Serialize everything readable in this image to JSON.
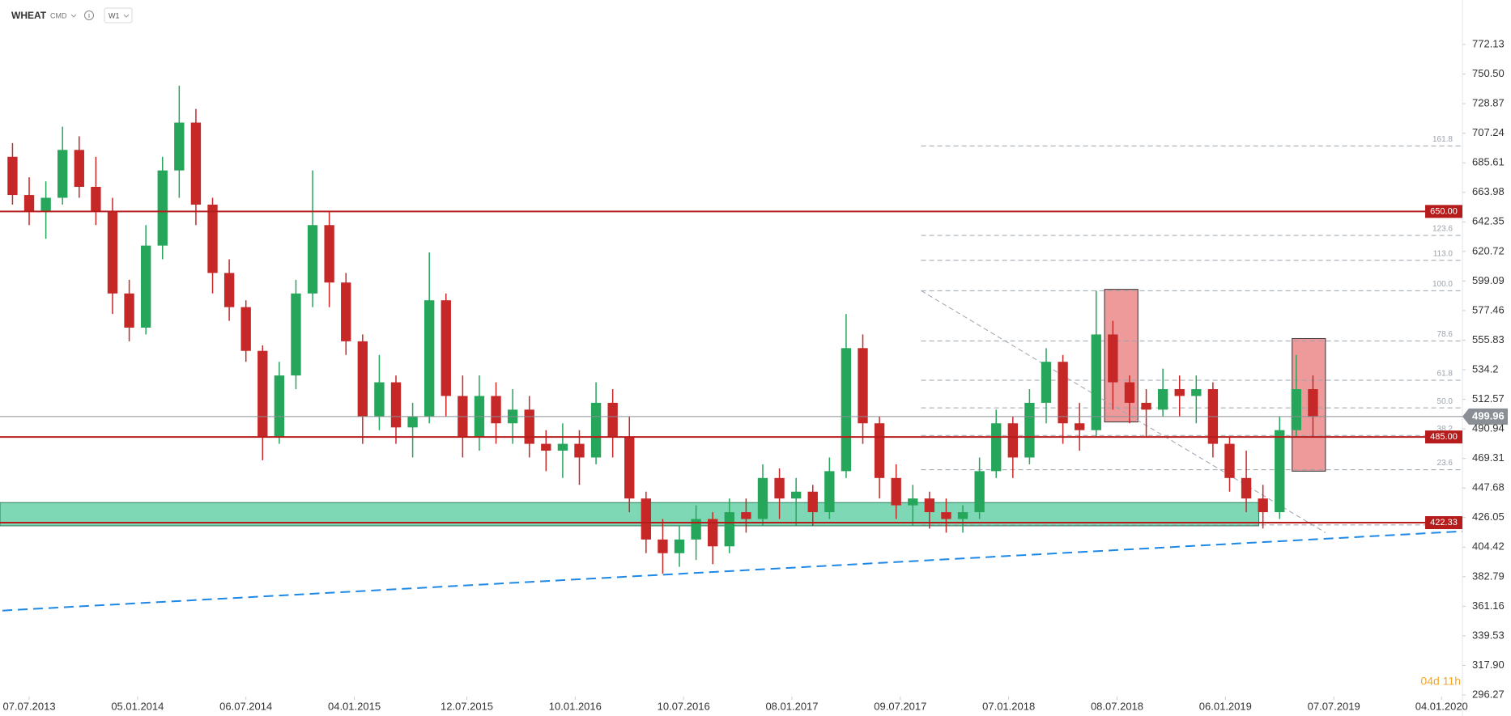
{
  "header": {
    "symbol": "WHEAT",
    "market": "CMD",
    "interval": "W1"
  },
  "countdown": "04d 11h",
  "chart_data": {
    "type": "candlestick",
    "xlim": [
      "19.05.2013",
      "08.02.2020"
    ],
    "xticks": [
      "07.07.2013",
      "05.01.2014",
      "06.07.2014",
      "04.01.2015",
      "12.07.2015",
      "10.01.2016",
      "10.07.2016",
      "08.01.2017",
      "09.07.2017",
      "07.01.2018",
      "08.07.2018",
      "06.01.2019",
      "07.07.2019",
      "04.01.2020"
    ],
    "ylim": [
      296.27,
      772.13
    ],
    "yticks": [
      772.13,
      {
        "value": 750.5,
        "label": "750.50"
      },
      728.87,
      707.24,
      685.61,
      663.98,
      642.35,
      620.72,
      599.09,
      577.46,
      555.83,
      534.2,
      512.57,
      490.94,
      469.31,
      447.68,
      426.05,
      404.42,
      382.79,
      361.16,
      339.53,
      {
        "value": 317.9,
        "label": "317.90"
      },
      296.27
    ],
    "up_color": "#26a65b",
    "down_color": "#c62828",
    "x": [
      "09.06.2013",
      "07.07.2013",
      "04.08.2013",
      "01.09.2013",
      "29.09.2013",
      "27.10.2013",
      "24.11.2013",
      "22.12.2013",
      "19.01.2014",
      "16.02.2014",
      "16.03.2014",
      "13.04.2014",
      "11.05.2014",
      "08.06.2014",
      "06.07.2014",
      "03.08.2014",
      "31.08.2014",
      "28.09.2014",
      "26.10.2014",
      "23.11.2014",
      "21.12.2014",
      "18.01.2015",
      "15.02.2015",
      "15.03.2015",
      "12.04.2015",
      "10.05.2015",
      "07.06.2015",
      "05.07.2015",
      "02.08.2015",
      "30.08.2015",
      "27.09.2015",
      "25.10.2015",
      "22.11.2015",
      "20.12.2015",
      "17.01.2016",
      "14.02.2016",
      "13.03.2016",
      "10.04.2016",
      "08.05.2016",
      "05.06.2016",
      "03.07.2016",
      "31.07.2016",
      "28.08.2016",
      "25.09.2016",
      "23.10.2016",
      "20.11.2016",
      "18.12.2016",
      "15.01.2017",
      "12.02.2017",
      "12.03.2017",
      "09.04.2017",
      "07.05.2017",
      "04.06.2017",
      "02.07.2017",
      "30.07.2017",
      "27.08.2017",
      "24.09.2017",
      "22.10.2017",
      "19.11.2017",
      "17.12.2017",
      "14.01.2018",
      "11.02.2018",
      "11.03.2018",
      "08.04.2018",
      "06.05.2018",
      "03.06.2018",
      "01.07.2018",
      "29.07.2018",
      "26.08.2018",
      "23.09.2018",
      "21.10.2018",
      "18.11.2018",
      "16.12.2018",
      "13.01.2019",
      "10.02.2019",
      "10.03.2019",
      "07.04.2019",
      "05.05.2019",
      "02.06.2019"
    ],
    "open": [
      690,
      662,
      650,
      660,
      695,
      668,
      650,
      590,
      565,
      625,
      680,
      715,
      655,
      605,
      580,
      548,
      485,
      530,
      590,
      640,
      598,
      555,
      500,
      525,
      492,
      500,
      585,
      515,
      485,
      515,
      495,
      505,
      480,
      475,
      480,
      470,
      510,
      485,
      440,
      410,
      400,
      410,
      425,
      405,
      430,
      425,
      455,
      440,
      445,
      430,
      460,
      550,
      495,
      455,
      435,
      440,
      430,
      425,
      430,
      460,
      495,
      470,
      510,
      540,
      495,
      490,
      560,
      525,
      510,
      505,
      520,
      515,
      520,
      480,
      455,
      440,
      430,
      490,
      520
    ],
    "high": [
      700,
      675,
      672,
      712,
      705,
      690,
      660,
      600,
      640,
      690,
      742,
      725,
      660,
      615,
      585,
      552,
      540,
      600,
      680,
      650,
      605,
      560,
      545,
      530,
      510,
      620,
      590,
      530,
      530,
      525,
      520,
      515,
      490,
      495,
      490,
      525,
      520,
      500,
      445,
      425,
      420,
      435,
      430,
      440,
      440,
      465,
      462,
      455,
      450,
      470,
      575,
      560,
      500,
      465,
      450,
      445,
      440,
      435,
      470,
      505,
      500,
      520,
      550,
      545,
      510,
      592,
      570,
      530,
      520,
      535,
      530,
      530,
      525,
      485,
      475,
      450,
      500,
      545,
      530
    ],
    "low": [
      655,
      640,
      630,
      655,
      660,
      640,
      575,
      555,
      560,
      615,
      660,
      640,
      590,
      570,
      540,
      468,
      480,
      520,
      580,
      580,
      545,
      480,
      490,
      480,
      470,
      495,
      500,
      470,
      475,
      480,
      480,
      470,
      460,
      455,
      450,
      465,
      470,
      430,
      400,
      385,
      390,
      395,
      392,
      400,
      415,
      420,
      425,
      420,
      420,
      425,
      455,
      480,
      440,
      425,
      420,
      418,
      415,
      415,
      425,
      455,
      455,
      465,
      495,
      480,
      475,
      485,
      505,
      495,
      485,
      500,
      500,
      495,
      470,
      445,
      430,
      418,
      425,
      485,
      485
    ],
    "close": [
      662,
      650,
      660,
      695,
      668,
      650,
      590,
      565,
      625,
      680,
      715,
      655,
      605,
      580,
      548,
      485,
      530,
      590,
      640,
      598,
      555,
      500,
      525,
      492,
      500,
      585,
      515,
      485,
      515,
      495,
      505,
      480,
      475,
      480,
      470,
      510,
      485,
      440,
      410,
      400,
      410,
      425,
      405,
      430,
      425,
      455,
      440,
      445,
      430,
      460,
      550,
      495,
      455,
      435,
      440,
      430,
      425,
      430,
      460,
      495,
      470,
      510,
      540,
      495,
      490,
      560,
      525,
      510,
      505,
      520,
      515,
      520,
      480,
      455,
      440,
      430,
      490,
      520,
      500
    ],
    "h_lines": [
      {
        "value": 650,
        "label": "650.00"
      },
      {
        "value": 485,
        "label": "485.00"
      },
      422.33
    ],
    "h_line_color": "#b71c1c",
    "last_price": 499.96,
    "zone": {
      "from": "19.05.2013",
      "to": "03.03.2019",
      "low": 420,
      "high": 437,
      "color": "#7fd8b5"
    },
    "boxes": [
      {
        "from": "17.06.2018",
        "to": "12.08.2018",
        "low": 496,
        "high": 593
      },
      {
        "from": "28.04.2019",
        "to": "23.06.2019",
        "low": 460,
        "high": 557
      }
    ],
    "box_color": "#ef9a9a",
    "fib": {
      "from": "13.08.2017",
      "high": 592,
      "low": 420.6,
      "levels": [
        {
          "value": 161.8,
          "label": "161.8"
        },
        123.6,
        {
          "value": 113,
          "label": "113.0"
        },
        {
          "value": 100,
          "label": "100.0"
        },
        78.6,
        61.8,
        {
          "value": 50,
          "label": "50.0"
        },
        38.2,
        23.6
      ]
    },
    "fib_diagonal": {
      "from": "13.08.2017",
      "to": "23.06.2019",
      "start": 592,
      "end": 415
    },
    "trendline": {
      "start": 358,
      "end": 416,
      "color": "#1e88e5"
    }
  }
}
